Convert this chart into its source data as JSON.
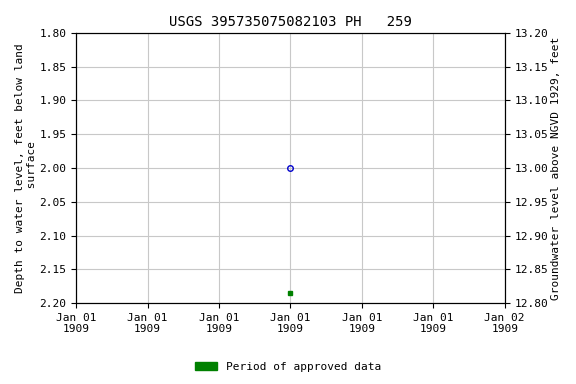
{
  "title": "USGS 395735075082103 PH   259",
  "ylabel_left": "Depth to water level, feet below land\n surface",
  "ylabel_right": "Groundwater level above NGVD 1929, feet",
  "ylim_left": [
    2.2,
    1.8
  ],
  "ylim_right": [
    12.8,
    13.2
  ],
  "yticks_left": [
    1.8,
    1.85,
    1.9,
    1.95,
    2.0,
    2.05,
    2.1,
    2.15,
    2.2
  ],
  "yticks_right": [
    12.8,
    12.85,
    12.9,
    12.95,
    13.0,
    13.05,
    13.1,
    13.15,
    13.2
  ],
  "xlim": [
    0,
    6
  ],
  "xtick_positions": [
    0,
    1,
    2,
    3,
    4,
    5,
    6
  ],
  "xtick_labels": [
    "Jan 01\n1909",
    "Jan 01\n1909",
    "Jan 01\n1909",
    "Jan 01\n1909",
    "Jan 01\n1909",
    "Jan 01\n1909",
    "Jan 02\n1909"
  ],
  "data_point_x": 3,
  "data_point_y": 2.0,
  "data_point_color": "#0000cc",
  "data_point_fillstyle": "none",
  "data_point_markersize": 4,
  "green_dot_x": 3,
  "green_dot_y": 2.185,
  "green_dot_color": "#008000",
  "green_dot_markersize": 3,
  "grid_color": "#c8c8c8",
  "background_color": "#ffffff",
  "legend_label": "Period of approved data",
  "legend_color": "#008000",
  "title_fontsize": 10,
  "label_fontsize": 8,
  "tick_fontsize": 8
}
